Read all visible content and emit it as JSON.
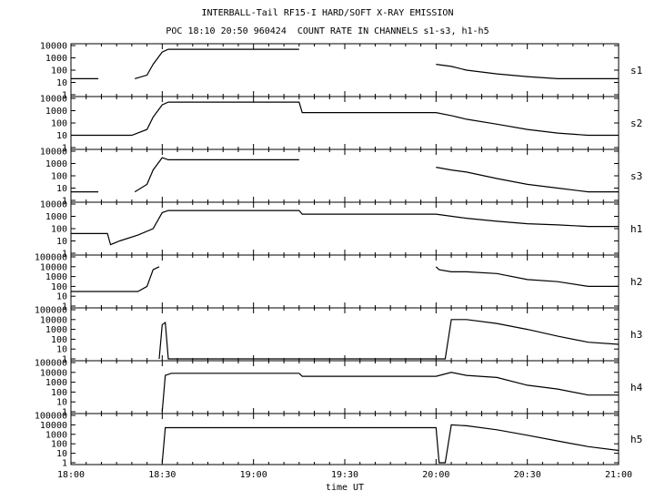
{
  "header": {
    "title": "INTERBALL-Tail RF15-I HARD/SOFT X-RAY EMISSION",
    "subtitle": "POC 18:10 20:50 960424  COUNT RATE IN CHANNELS s1-s3, h1-h5"
  },
  "chart_data": {
    "type": "line",
    "title": "INTERBALL-Tail RF15-I HARD/SOFT X-RAY EMISSION",
    "subtitle": "POC 18:10 20:50 960424  COUNT RATE IN CHANNELS s1-s3, h1-h5",
    "xlabel": "time UT",
    "x_ticks": [
      "18:00",
      "18:30",
      "19:00",
      "19:30",
      "20:00",
      "20:30",
      "21:00"
    ],
    "xlim_minutes_after_18:00": [
      0,
      180
    ],
    "y_scale": "log",
    "grid": false,
    "panels": [
      {
        "name": "s1",
        "ylim": [
          1,
          10000
        ],
        "y_ticks": [
          "10000",
          "1000",
          "100",
          "10",
          "1"
        ],
        "x": [
          0,
          9,
          12,
          21,
          25,
          27,
          30,
          32,
          39,
          75,
          82,
          120,
          125,
          130,
          140,
          150,
          160,
          170,
          180
        ],
        "values": [
          20,
          20,
          null,
          20,
          40,
          300,
          3000,
          5000,
          5000,
          5000,
          null,
          300,
          200,
          100,
          50,
          30,
          20,
          20,
          20
        ]
      },
      {
        "name": "s2",
        "ylim": [
          1,
          10000
        ],
        "y_ticks": [
          "10000",
          "1000",
          "100",
          "10",
          "1"
        ],
        "x": [
          0,
          10,
          20,
          25,
          27,
          30,
          32,
          75,
          76,
          120,
          125,
          130,
          140,
          150,
          160,
          170,
          180
        ],
        "values": [
          10,
          10,
          10,
          30,
          300,
          3000,
          5000,
          5000,
          700,
          700,
          400,
          200,
          80,
          30,
          15,
          10,
          10
        ]
      },
      {
        "name": "s3",
        "ylim": [
          1,
          10000
        ],
        "y_ticks": [
          "10000",
          "1000",
          "100",
          "10",
          "1"
        ],
        "x": [
          0,
          9,
          12,
          21,
          25,
          27,
          30,
          32,
          75,
          82,
          120,
          125,
          130,
          140,
          150,
          160,
          170,
          180
        ],
        "values": [
          5,
          5,
          null,
          5,
          20,
          300,
          3000,
          2000,
          2000,
          null,
          500,
          300,
          200,
          60,
          20,
          10,
          5,
          5
        ]
      },
      {
        "name": "h1",
        "ylim": [
          1,
          10000
        ],
        "y_ticks": [
          "10000",
          "1000",
          "100",
          "10",
          "1"
        ],
        "x": [
          0,
          12,
          13,
          16,
          22,
          27,
          30,
          32,
          75,
          76,
          120,
          130,
          140,
          150,
          160,
          170,
          180
        ],
        "values": [
          40,
          40,
          5,
          10,
          30,
          100,
          2000,
          3000,
          3000,
          1500,
          1500,
          700,
          400,
          250,
          200,
          150,
          150
        ]
      },
      {
        "name": "h2",
        "ylim": [
          1,
          100000
        ],
        "y_ticks": [
          "100000",
          "10000",
          "1000",
          "100",
          "10",
          "1"
        ],
        "x": [
          0,
          22,
          25,
          27,
          29,
          30,
          120,
          121,
          125,
          130,
          140,
          150,
          160,
          170,
          180
        ],
        "values": [
          30,
          30,
          100,
          5000,
          10000,
          null,
          10000,
          5000,
          3000,
          3000,
          2000,
          500,
          300,
          100,
          100
        ]
      },
      {
        "name": "h3",
        "ylim": [
          1,
          100000
        ],
        "y_ticks": [
          "100000",
          "10000",
          "1000",
          "100",
          "10",
          "1"
        ],
        "x": [
          29,
          30,
          31,
          32,
          123,
          125,
          130,
          140,
          150,
          160,
          170,
          180
        ],
        "values": [
          1,
          3000,
          5000,
          1,
          1,
          10000,
          10000,
          4000,
          1000,
          200,
          50,
          30
        ]
      },
      {
        "name": "h4",
        "ylim": [
          1,
          100000
        ],
        "y_ticks": [
          "100000",
          "10000",
          "1000",
          "100",
          "10",
          "1"
        ],
        "x": [
          30,
          31,
          33,
          75,
          76,
          120,
          125,
          130,
          140,
          150,
          160,
          170,
          180
        ],
        "values": [
          1,
          5000,
          8000,
          8000,
          4000,
          4000,
          10000,
          5000,
          3000,
          500,
          200,
          50,
          50
        ]
      },
      {
        "name": "h5",
        "ylim": [
          1,
          100000
        ],
        "y_ticks": [
          "100000",
          "10000",
          "1000",
          "100",
          "10",
          "1"
        ],
        "x": [
          30,
          31,
          33,
          75,
          120,
          121,
          123,
          125,
          130,
          140,
          150,
          160,
          170,
          180
        ],
        "values": [
          1,
          5000,
          5000,
          5000,
          5000,
          1,
          1,
          10000,
          8000,
          3000,
          800,
          200,
          50,
          20
        ]
      }
    ]
  }
}
